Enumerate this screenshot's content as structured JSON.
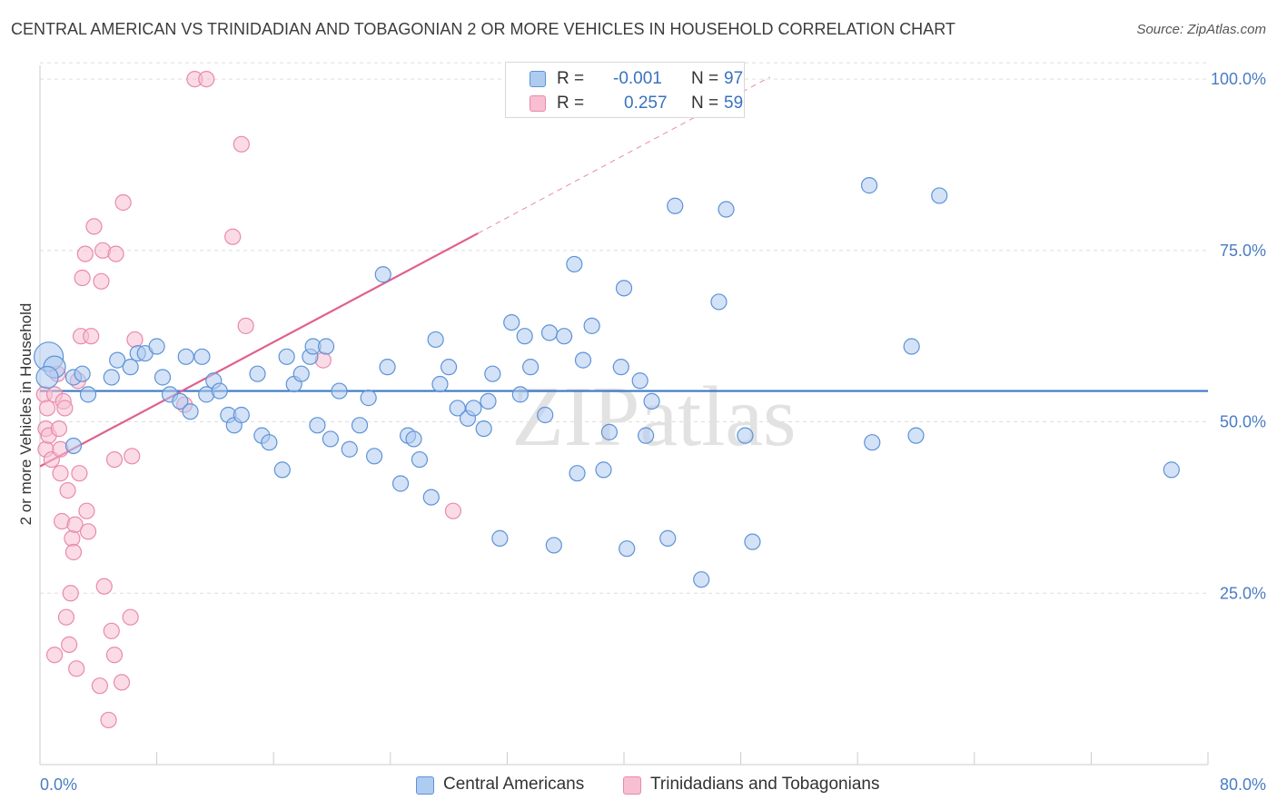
{
  "title": "CENTRAL AMERICAN VS TRINIDADIAN AND TOBAGONIAN 2 OR MORE VEHICLES IN HOUSEHOLD CORRELATION CHART",
  "source": "Source: ZipAtlas.com",
  "watermark": "ZIPatlas",
  "legend_top": [
    {
      "r_label": "R =",
      "r_value": "-0.001",
      "n_label": "N =",
      "n_value": "97"
    },
    {
      "r_label": "R =",
      "r_value": "0.257",
      "n_label": "N =",
      "n_value": "59"
    }
  ],
  "colors": {
    "blue_fill": "#aecbf0",
    "blue_stroke": "#5e93d6",
    "blue_line": "#3a78c4",
    "pink_fill": "#f7bfd1",
    "pink_stroke": "#e98aab",
    "pink_line": "#e0608e",
    "grid": "#dddddd",
    "tick_text": "#4a7cc4"
  },
  "chart_data": {
    "type": "scatter",
    "title": "CENTRAL AMERICAN VS TRINIDADIAN AND TOBAGONIAN 2 OR MORE VEHICLES IN HOUSEHOLD CORRELATION CHART",
    "xlabel": "",
    "ylabel": "2 or more Vehicles in Household",
    "xlim": [
      0,
      80
    ],
    "ylim": [
      0,
      102
    ],
    "x_tick_labels": [
      "0.0%",
      "80.0%"
    ],
    "y_ticks": [
      25,
      50,
      75,
      100
    ],
    "y_tick_labels": [
      "25.0%",
      "50.0%",
      "75.0%",
      "100.0%"
    ],
    "grid": true,
    "legend_position": "bottom",
    "series": [
      {
        "name": "Central Americans",
        "color": "#5e93d6",
        "trend": {
          "x": [
            0,
            80
          ],
          "y": [
            54.5,
            54.5
          ]
        },
        "points": [
          {
            "x": 0.6,
            "y": 59.5,
            "s": 16
          },
          {
            "x": 1.0,
            "y": 58,
            "s": 12
          },
          {
            "x": 0.5,
            "y": 56.5,
            "s": 12
          },
          {
            "x": 2.3,
            "y": 56.5
          },
          {
            "x": 3.3,
            "y": 54
          },
          {
            "x": 2.3,
            "y": 46.5
          },
          {
            "x": 2.9,
            "y": 57
          },
          {
            "x": 4.9,
            "y": 56.5
          },
          {
            "x": 5.3,
            "y": 59
          },
          {
            "x": 6.2,
            "y": 58
          },
          {
            "x": 6.7,
            "y": 60
          },
          {
            "x": 7.2,
            "y": 60
          },
          {
            "x": 8.0,
            "y": 61
          },
          {
            "x": 8.4,
            "y": 56.5
          },
          {
            "x": 8.9,
            "y": 54
          },
          {
            "x": 9.6,
            "y": 53
          },
          {
            "x": 10.0,
            "y": 59.5
          },
          {
            "x": 10.3,
            "y": 51.5
          },
          {
            "x": 11.1,
            "y": 59.5
          },
          {
            "x": 11.4,
            "y": 54
          },
          {
            "x": 11.9,
            "y": 56
          },
          {
            "x": 12.3,
            "y": 54.5
          },
          {
            "x": 12.9,
            "y": 51
          },
          {
            "x": 13.3,
            "y": 49.5
          },
          {
            "x": 13.8,
            "y": 51
          },
          {
            "x": 14.9,
            "y": 57
          },
          {
            "x": 15.2,
            "y": 48
          },
          {
            "x": 15.7,
            "y": 47
          },
          {
            "x": 16.6,
            "y": 43
          },
          {
            "x": 16.9,
            "y": 59.5
          },
          {
            "x": 17.4,
            "y": 55.5
          },
          {
            "x": 17.9,
            "y": 57
          },
          {
            "x": 18.5,
            "y": 59.5
          },
          {
            "x": 18.7,
            "y": 61
          },
          {
            "x": 19.0,
            "y": 49.5
          },
          {
            "x": 19.6,
            "y": 61
          },
          {
            "x": 19.9,
            "y": 47.5
          },
          {
            "x": 20.5,
            "y": 54.5
          },
          {
            "x": 21.2,
            "y": 46
          },
          {
            "x": 21.9,
            "y": 49.5
          },
          {
            "x": 22.5,
            "y": 53.5
          },
          {
            "x": 22.9,
            "y": 45
          },
          {
            "x": 23.5,
            "y": 71.5
          },
          {
            "x": 23.8,
            "y": 58
          },
          {
            "x": 24.7,
            "y": 41
          },
          {
            "x": 25.2,
            "y": 48
          },
          {
            "x": 25.6,
            "y": 47.5
          },
          {
            "x": 26.0,
            "y": 44.5
          },
          {
            "x": 26.8,
            "y": 39
          },
          {
            "x": 27.1,
            "y": 62
          },
          {
            "x": 27.4,
            "y": 55.5
          },
          {
            "x": 28.0,
            "y": 58
          },
          {
            "x": 28.6,
            "y": 52
          },
          {
            "x": 29.3,
            "y": 50.5
          },
          {
            "x": 29.7,
            "y": 52
          },
          {
            "x": 30.4,
            "y": 49
          },
          {
            "x": 30.7,
            "y": 53
          },
          {
            "x": 31.0,
            "y": 57
          },
          {
            "x": 31.5,
            "y": 33
          },
          {
            "x": 32.3,
            "y": 64.5
          },
          {
            "x": 32.9,
            "y": 54
          },
          {
            "x": 33.2,
            "y": 62.5
          },
          {
            "x": 33.6,
            "y": 58
          },
          {
            "x": 34.6,
            "y": 51
          },
          {
            "x": 34.9,
            "y": 63
          },
          {
            "x": 35.2,
            "y": 32
          },
          {
            "x": 35.9,
            "y": 62.5
          },
          {
            "x": 36.6,
            "y": 73
          },
          {
            "x": 36.8,
            "y": 42.5
          },
          {
            "x": 37.2,
            "y": 59
          },
          {
            "x": 37.8,
            "y": 64
          },
          {
            "x": 38.6,
            "y": 43
          },
          {
            "x": 39.0,
            "y": 48.5
          },
          {
            "x": 39.8,
            "y": 58
          },
          {
            "x": 40.0,
            "y": 69.5
          },
          {
            "x": 40.2,
            "y": 31.5
          },
          {
            "x": 41.1,
            "y": 56
          },
          {
            "x": 41.5,
            "y": 48
          },
          {
            "x": 41.9,
            "y": 53
          },
          {
            "x": 43.0,
            "y": 33
          },
          {
            "x": 43.5,
            "y": 81.5
          },
          {
            "x": 45.3,
            "y": 27
          },
          {
            "x": 46.5,
            "y": 67.5
          },
          {
            "x": 47.0,
            "y": 81
          },
          {
            "x": 48.3,
            "y": 48
          },
          {
            "x": 48.8,
            "y": 32.5
          },
          {
            "x": 56.8,
            "y": 84.5
          },
          {
            "x": 57.0,
            "y": 47
          },
          {
            "x": 59.7,
            "y": 61
          },
          {
            "x": 60.0,
            "y": 48
          },
          {
            "x": 61.6,
            "y": 83
          },
          {
            "x": 77.5,
            "y": 43
          }
        ]
      },
      {
        "name": "Trinidadians and Tobagonians",
        "color": "#e98aab",
        "trend": {
          "x": [
            0,
            30
          ],
          "y": [
            43.5,
            77.5
          ]
        },
        "trend_extension": {
          "x": [
            30,
            50
          ],
          "y": [
            77.5,
            100.3
          ]
        },
        "points": [
          {
            "x": 0.3,
            "y": 54
          },
          {
            "x": 0.4,
            "y": 49
          },
          {
            "x": 0.4,
            "y": 46
          },
          {
            "x": 0.5,
            "y": 52
          },
          {
            "x": 0.6,
            "y": 48
          },
          {
            "x": 0.8,
            "y": 44.5
          },
          {
            "x": 1.0,
            "y": 54
          },
          {
            "x": 1.0,
            "y": 16
          },
          {
            "x": 1.2,
            "y": 57
          },
          {
            "x": 1.3,
            "y": 49
          },
          {
            "x": 1.4,
            "y": 46
          },
          {
            "x": 1.4,
            "y": 42.5
          },
          {
            "x": 1.5,
            "y": 35.5
          },
          {
            "x": 1.6,
            "y": 53
          },
          {
            "x": 1.7,
            "y": 52
          },
          {
            "x": 1.8,
            "y": 21.5
          },
          {
            "x": 1.9,
            "y": 40
          },
          {
            "x": 2.0,
            "y": 17.5
          },
          {
            "x": 2.1,
            "y": 25
          },
          {
            "x": 2.2,
            "y": 33
          },
          {
            "x": 2.3,
            "y": 31
          },
          {
            "x": 2.4,
            "y": 35
          },
          {
            "x": 2.5,
            "y": 14
          },
          {
            "x": 2.6,
            "y": 56
          },
          {
            "x": 2.7,
            "y": 42.5
          },
          {
            "x": 2.8,
            "y": 62.5
          },
          {
            "x": 2.9,
            "y": 71
          },
          {
            "x": 3.1,
            "y": 74.5
          },
          {
            "x": 3.2,
            "y": 37
          },
          {
            "x": 3.3,
            "y": 34
          },
          {
            "x": 3.5,
            "y": 62.5
          },
          {
            "x": 3.7,
            "y": 78.5
          },
          {
            "x": 4.1,
            "y": 11.5
          },
          {
            "x": 4.2,
            "y": 70.5
          },
          {
            "x": 4.3,
            "y": 75
          },
          {
            "x": 4.4,
            "y": 26
          },
          {
            "x": 4.7,
            "y": 6.5
          },
          {
            "x": 4.9,
            "y": 19.5
          },
          {
            "x": 5.1,
            "y": 16
          },
          {
            "x": 5.1,
            "y": 44.5
          },
          {
            "x": 5.2,
            "y": 74.5
          },
          {
            "x": 5.6,
            "y": 12
          },
          {
            "x": 5.7,
            "y": 82
          },
          {
            "x": 6.2,
            "y": 21.5
          },
          {
            "x": 6.3,
            "y": 45
          },
          {
            "x": 6.5,
            "y": 62
          },
          {
            "x": 9.9,
            "y": 52.5
          },
          {
            "x": 10.6,
            "y": 100
          },
          {
            "x": 11.4,
            "y": 100
          },
          {
            "x": 13.2,
            "y": 77
          },
          {
            "x": 13.8,
            "y": 90.5
          },
          {
            "x": 14.1,
            "y": 64
          },
          {
            "x": 19.4,
            "y": 59
          },
          {
            "x": 28.3,
            "y": 37
          }
        ]
      }
    ]
  }
}
